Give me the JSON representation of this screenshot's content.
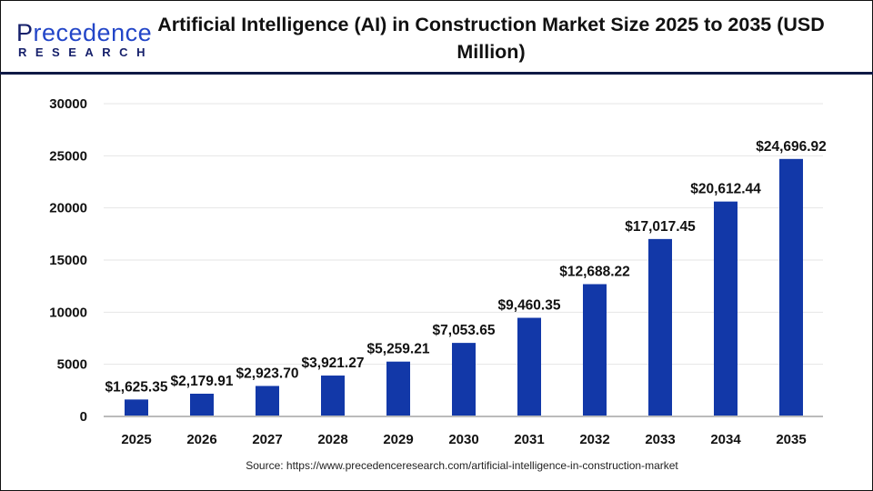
{
  "logo": {
    "line1_first": "P",
    "line1_rest": "recedence",
    "line2": "RESEARCH"
  },
  "source": "Source: https://www.precedenceresearch.com/artificial-intelligence-in-construction-market",
  "chart_data": {
    "type": "bar",
    "title": "Artificial Intelligence (AI) in Construction Market Size 2025 to 2035 (USD Million)",
    "xlabel": "",
    "ylabel": "",
    "categories": [
      "2025",
      "2026",
      "2027",
      "2028",
      "2029",
      "2030",
      "2031",
      "2032",
      "2033",
      "2034",
      "2035"
    ],
    "values": [
      1625.35,
      2179.91,
      2923.7,
      3921.27,
      5259.21,
      7053.65,
      9460.35,
      12688.22,
      17017.45,
      20612.44,
      24696.92
    ],
    "data_labels": [
      "$1,625.35",
      "$2,179.91",
      "$2,923.70",
      "$3,921.27",
      "$5,259.21",
      "$7,053.65",
      "$9,460.35",
      "$12,688.22",
      "$17,017.45",
      "$20,612.44",
      "$24,696.92"
    ],
    "ylim": [
      0,
      30000
    ],
    "yticks": [
      0,
      5000,
      10000,
      15000,
      20000,
      25000,
      30000
    ],
    "grid": true,
    "legend": "none",
    "bar_color": "#1238a8"
  }
}
